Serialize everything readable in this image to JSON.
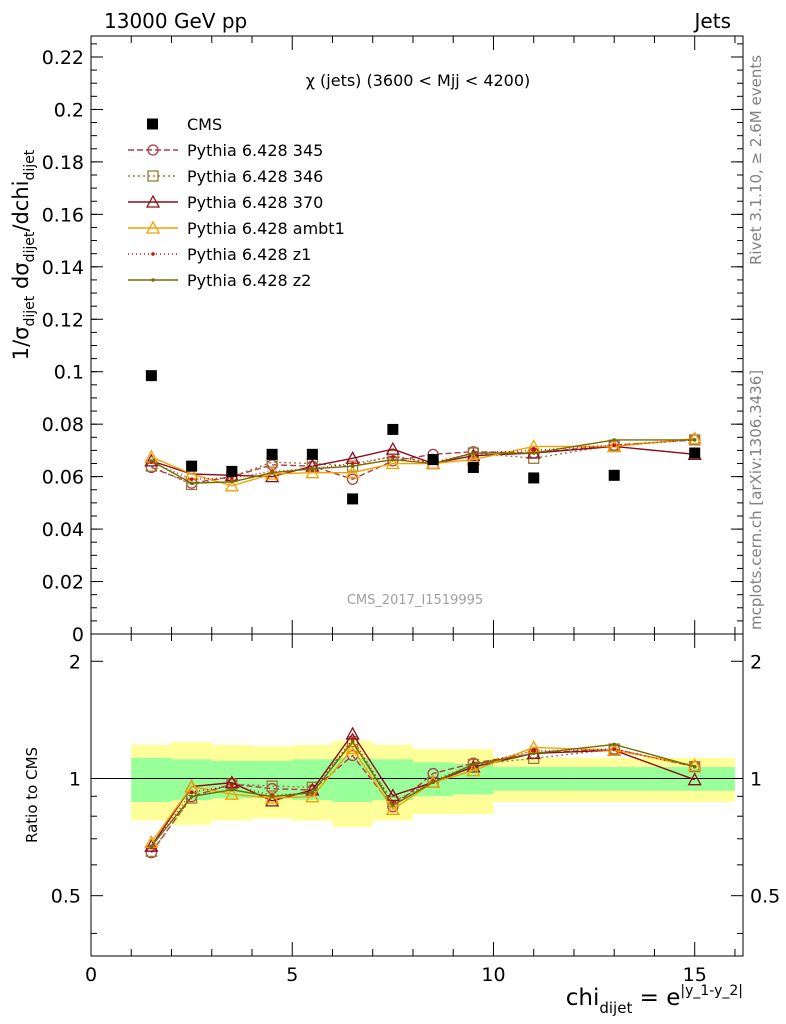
{
  "header": {
    "left": "13000 GeV pp",
    "right": "Jets"
  },
  "side_labels": {
    "rivet": "Rivet 3.1.10, ≥ 2.6M events",
    "mcplots": "mcplots.cern.ch [arXiv:1306.3436]"
  },
  "chart_data": {
    "type": "line",
    "title": "χ (jets) (3600 < Mjj < 4200)",
    "watermark": "CMS_2017_I1519995",
    "ylabel": {
      "main": "1/σ",
      "sub1": "dijet",
      "mid": " dσ",
      "sub2": "dijet",
      "tail": "/dchi",
      "sub3": "dijet"
    },
    "xlabel": {
      "main": "chi",
      "sub": "dijet",
      "eq": " = e",
      "sup": "|y_1-y_2|"
    },
    "ratio_ylabel": "Ratio to CMS",
    "xlim": [
      0,
      16.2
    ],
    "ylim": [
      0,
      0.228
    ],
    "ratio_ylim": [
      0.35,
      2.35
    ],
    "x_ticks": [
      "0",
      "5",
      "10",
      "15"
    ],
    "y_ticks": [
      "0",
      "0.02",
      "0.04",
      "0.06",
      "0.08",
      "0.1",
      "0.12",
      "0.14",
      "0.16",
      "0.18",
      "0.2",
      "0.22"
    ],
    "ratio_ticks": [
      "0.5",
      "1",
      "2"
    ],
    "x": [
      1.5,
      2.5,
      3.5,
      4.5,
      5.5,
      6.5,
      7.5,
      8.5,
      9.5,
      11,
      13,
      15
    ],
    "bin_edges": [
      1,
      2,
      3,
      4,
      5,
      6,
      7,
      8,
      9,
      10,
      12,
      14,
      16
    ],
    "data": {
      "name": "CMS",
      "values": [
        0.0985,
        0.064,
        0.062,
        0.0685,
        0.0685,
        0.0515,
        0.078,
        0.0665,
        0.0635,
        0.0595,
        0.0605,
        0.069
      ]
    },
    "band_inner": [
      0.13,
      0.12,
      0.11,
      0.11,
      0.12,
      0.13,
      0.12,
      0.1,
      0.09,
      0.07,
      0.07,
      0.07
    ],
    "band_outer": [
      0.22,
      0.24,
      0.22,
      0.21,
      0.22,
      0.25,
      0.22,
      0.19,
      0.19,
      0.13,
      0.13,
      0.13
    ],
    "series": [
      {
        "name": "Pythia 6.428 345",
        "color": "#b03a4a",
        "dash": "6,3",
        "marker": "circle",
        "values": [
          0.0635,
          0.0575,
          0.06,
          0.0645,
          0.064,
          0.059,
          0.066,
          0.0685,
          0.0695,
          0.069,
          0.072,
          0.074
        ]
      },
      {
        "name": "Pythia 6.428 346",
        "color": "#9a7a3a",
        "dash": "2,3",
        "marker": "square",
        "values": [
          0.064,
          0.057,
          0.06,
          0.0655,
          0.065,
          0.064,
          0.068,
          0.065,
          0.069,
          0.067,
          0.072,
          0.074
        ]
      },
      {
        "name": "Pythia 6.428 370",
        "color": "#8b0e1e",
        "dash": "",
        "marker": "triangle",
        "values": [
          0.066,
          0.061,
          0.0605,
          0.06,
          0.064,
          0.067,
          0.0705,
          0.065,
          0.068,
          0.069,
          0.0715,
          0.0685
        ]
      },
      {
        "name": "Pythia 6.428 ambt1",
        "color": "#f5a000",
        "dash": "",
        "marker": "triangle",
        "values": [
          0.0675,
          0.061,
          0.0565,
          0.061,
          0.0615,
          0.0615,
          0.065,
          0.065,
          0.0665,
          0.0715,
          0.0715,
          0.0745
        ]
      },
      {
        "name": "Pythia 6.428 z1",
        "color": "#cc1100",
        "dash": "1,3",
        "marker": "dot",
        "values": [
          0.0655,
          0.059,
          0.0595,
          0.062,
          0.063,
          0.065,
          0.0675,
          0.0655,
          0.069,
          0.07,
          0.072,
          0.074
        ]
      },
      {
        "name": "Pythia 6.428 z2",
        "color": "#707000",
        "dash": "",
        "marker": "dot",
        "values": [
          0.066,
          0.0575,
          0.058,
          0.0615,
          0.063,
          0.064,
          0.0665,
          0.065,
          0.069,
          0.069,
          0.074,
          0.074
        ]
      }
    ]
  }
}
